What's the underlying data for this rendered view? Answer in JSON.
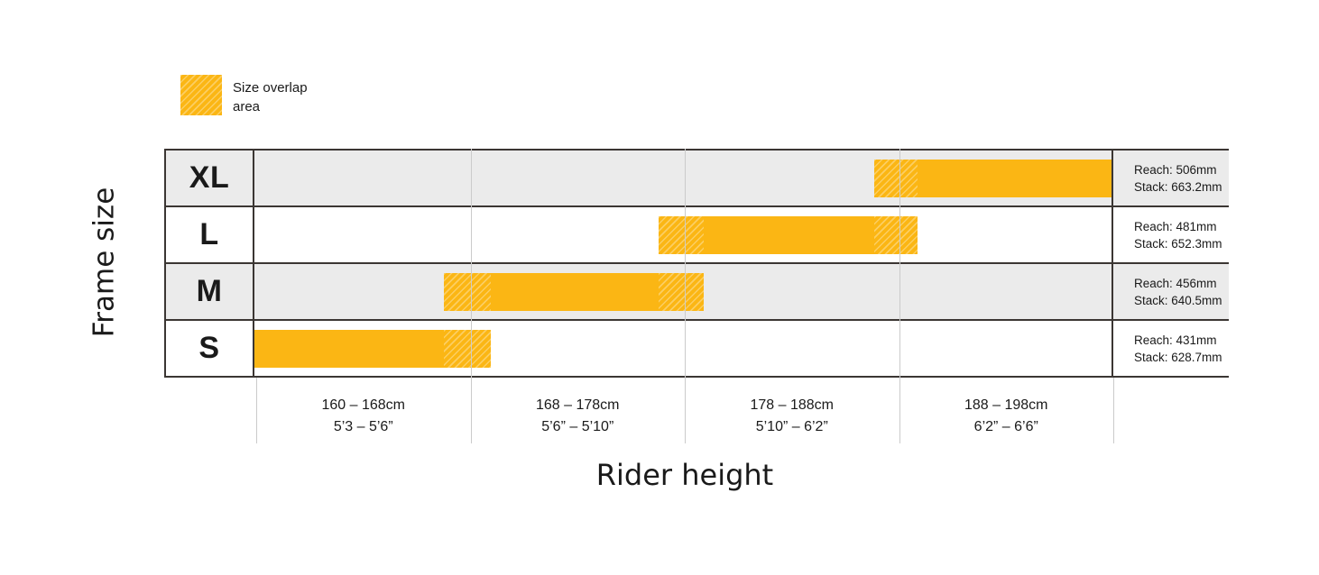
{
  "legend": {
    "line1": "Size overlap",
    "line2": "area"
  },
  "y_axis_title": "Frame size",
  "x_axis_title": "Rider height",
  "colors": {
    "bar_yellow": "#FBB614",
    "row_shaded": "#EBEBEB",
    "border_dark": "#3B3633",
    "gridline": "#CBCBCB"
  },
  "chart_data": {
    "type": "bar",
    "orientation": "horizontal-range",
    "xlabel": "Rider height",
    "ylabel": "Frame size",
    "categories": [
      "XL",
      "L",
      "M",
      "S"
    ],
    "axis_sections_cm": [
      [
        160,
        168
      ],
      [
        168,
        178
      ],
      [
        178,
        188
      ],
      [
        188,
        198
      ]
    ],
    "rows": [
      {
        "size": "XL",
        "reach": "Reach: 506mm",
        "stack": "Stack: 663.2mm",
        "height_cm_est": [
          187,
          198
        ],
        "bar": {
          "start_pct": 72.3,
          "end_pct": 100,
          "overlaps_pct": [
            [
              72.3,
              77.4
            ]
          ]
        },
        "shaded_row": true
      },
      {
        "size": "L",
        "reach": "Reach: 481mm",
        "stack": "Stack: 652.3mm",
        "height_cm_est": [
          177,
          189
        ],
        "bar": {
          "start_pct": 47.2,
          "end_pct": 77.4,
          "overlaps_pct": [
            [
              47.2,
              52.4
            ],
            [
              72.3,
              77.4
            ]
          ]
        },
        "shaded_row": false
      },
      {
        "size": "M",
        "reach": "Reach: 456mm",
        "stack": "Stack: 640.5mm",
        "height_cm_est": [
          167,
          179
        ],
        "bar": {
          "start_pct": 22.1,
          "end_pct": 52.4,
          "overlaps_pct": [
            [
              22.1,
              27.6
            ],
            [
              47.2,
              52.4
            ]
          ]
        },
        "shaded_row": true
      },
      {
        "size": "S",
        "reach": "Reach: 431mm",
        "stack": "Stack: 628.7mm",
        "height_cm_est": [
          160,
          169
        ],
        "bar": {
          "start_pct": 0,
          "end_pct": 27.6,
          "overlaps_pct": [
            [
              22.1,
              27.6
            ]
          ]
        },
        "shaded_row": false
      }
    ],
    "x_ticks": [
      {
        "cm": "160 – 168cm",
        "imperial": "5’3 – 5’6”"
      },
      {
        "cm": "168 – 178cm",
        "imperial": "5’6” – 5’10”"
      },
      {
        "cm": "178 – 188cm",
        "imperial": "5’10” – 6’2”"
      },
      {
        "cm": "188 – 198cm",
        "imperial": "6’2” – 6’6”"
      }
    ]
  }
}
